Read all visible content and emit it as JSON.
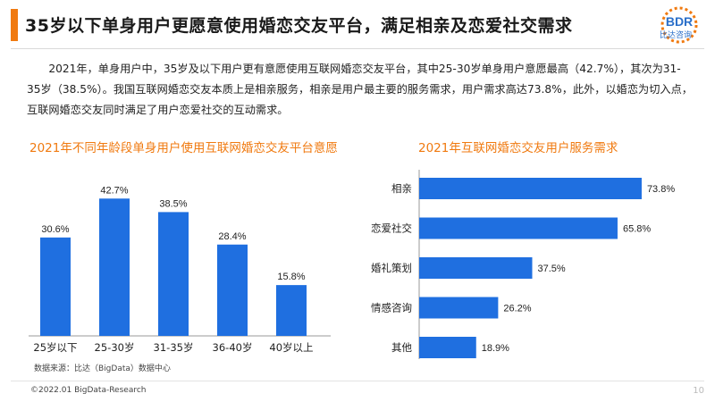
{
  "header": {
    "title": "35岁以下单身用户更愿意使用婚恋交友平台，满足相亲及恋爱社交需求",
    "logo_text": "BDR",
    "logo_subtext": "比达咨询"
  },
  "paragraph": "2021年，单身用户中，35岁及以下用户更有意愿使用互联网婚恋交友平台，其中25-30岁单身用户意愿最高（42.7%），其次为31-35岁（38.5%）。我国互联网婚恋交友本质上是相亲服务，相亲是用户最主要的服务需求，用户需求高达73.8%，此外，以婚恋为切入点，互联网婚恋交友同时满足了用户恋爱社交的互动需求。",
  "chart_data": [
    {
      "type": "bar",
      "title": "2021年不同年龄段单身用户使用互联网婚恋交友平台意愿",
      "categories": [
        "25岁以下",
        "25-30岁",
        "31-35岁",
        "36-40岁",
        "40岁以上"
      ],
      "values": [
        30.6,
        42.7,
        38.5,
        28.4,
        15.8
      ],
      "value_labels": [
        "30.6%",
        "42.7%",
        "38.5%",
        "28.4%",
        "15.8%"
      ],
      "ylim": [
        0,
        50
      ],
      "color": "#1f6fe0",
      "grid": false
    },
    {
      "type": "bar",
      "orientation": "horizontal",
      "title": "2021年互联网婚恋交友用户服务需求",
      "categories": [
        "相亲",
        "恋爱社交",
        "婚礼策划",
        "情感咨询",
        "其他"
      ],
      "values": [
        73.8,
        65.8,
        37.5,
        26.2,
        18.9
      ],
      "value_labels": [
        "73.8%",
        "65.8%",
        "37.5%",
        "26.2%",
        "18.9%"
      ],
      "xlim": [
        0,
        75
      ],
      "color": "#1f6fe0",
      "grid": false
    }
  ],
  "footer": {
    "source": "数据来源：比达（BigData）数据中心",
    "copyright": "©2022.01 BigData-Research",
    "page": "10"
  },
  "colors": {
    "accent": "#f07a10",
    "bar": "#1f6fe0",
    "logo": "#2a6fc9"
  }
}
